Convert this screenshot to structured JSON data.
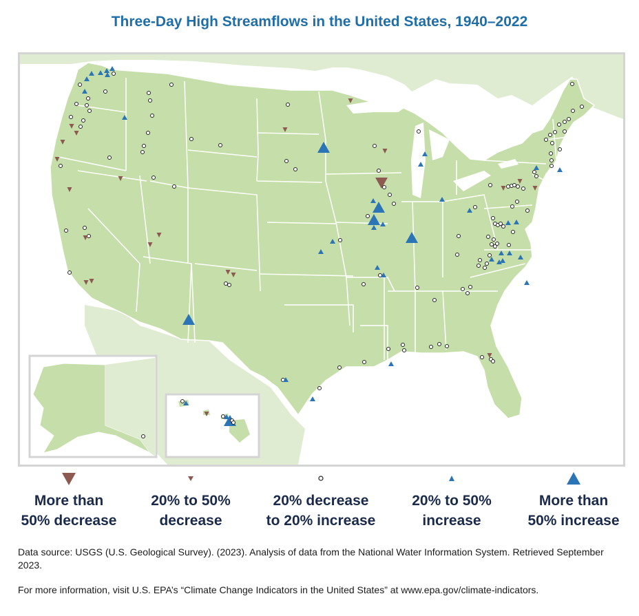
{
  "title": "Three-Day High Streamflows in the United States, 1940–2022",
  "colors": {
    "decrease": "#8c5a50",
    "increase": "#2b74b5",
    "land": "#c6dfaa",
    "neighbor": "#e0ecd2",
    "border": "#ffffff",
    "water": "#ffffff"
  },
  "legend": [
    {
      "key": "large-decrease",
      "line1": "More than",
      "line2": "50% decrease"
    },
    {
      "key": "small-decrease",
      "line1": "20% to 50%",
      "line2": "decrease"
    },
    {
      "key": "no-change",
      "line1": "20% decrease",
      "line2": "to 20% increase"
    },
    {
      "key": "small-increase",
      "line1": "20% to 50%",
      "line2": "increase"
    },
    {
      "key": "large-increase",
      "line1": "More than",
      "line2": "50% increase"
    }
  ],
  "source": "Data source: USGS (U.S. Geological Survey). (2023). Analysis of data from the National Water Information System. Retrieved September 2023.",
  "more_info": "For more information, visit U.S. EPA’s “Climate Change Indicators in the United States” at www.epa.gov/climate-indicators."
}
